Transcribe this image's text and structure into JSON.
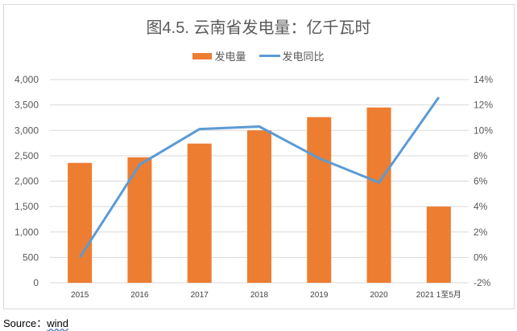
{
  "chart_data": {
    "type": "bar+line",
    "title": "图4.5. 云南省发电量：亿千瓦时",
    "categories": [
      "2015",
      "2016",
      "2017",
      "2018",
      "2019",
      "2020",
      "2021 1至5月"
    ],
    "series": [
      {
        "name": "发电量",
        "type": "bar",
        "axis": "left",
        "color": "#ed7d31",
        "values": [
          2360,
          2470,
          2740,
          3000,
          3260,
          3450,
          1500
        ]
      },
      {
        "name": "发电同比",
        "type": "line",
        "axis": "right",
        "color": "#5b9bd5",
        "values": [
          0.0,
          7.3,
          10.1,
          10.3,
          7.8,
          5.9,
          12.6
        ]
      }
    ],
    "y_left": {
      "range": [
        0,
        4000
      ],
      "ticks": [
        "0",
        "500",
        "1,000",
        "1,500",
        "2,000",
        "2,500",
        "3,000",
        "3,500",
        "4,000"
      ]
    },
    "y_right": {
      "range": [
        -2,
        14
      ],
      "ticks": [
        "-2%",
        "0%",
        "2%",
        "4%",
        "6%",
        "8%",
        "10%",
        "12%",
        "14%"
      ]
    },
    "grid": true,
    "legend": "top"
  },
  "source": {
    "label": "Source：",
    "value": "wind"
  }
}
